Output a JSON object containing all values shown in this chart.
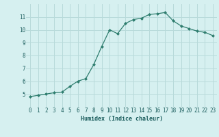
{
  "x": [
    0,
    1,
    2,
    3,
    4,
    5,
    6,
    7,
    8,
    9,
    10,
    11,
    12,
    13,
    14,
    15,
    16,
    17,
    18,
    19,
    20,
    21,
    22,
    23
  ],
  "y": [
    4.8,
    4.9,
    5.0,
    5.1,
    5.15,
    5.6,
    6.0,
    6.2,
    7.3,
    8.7,
    10.0,
    9.7,
    10.5,
    10.8,
    10.9,
    11.2,
    11.25,
    11.35,
    10.7,
    10.3,
    10.1,
    9.9,
    9.8,
    9.55
  ],
  "line_color": "#2e7d6e",
  "marker": "D",
  "marker_size": 2.0,
  "bg_color": "#d6f0f0",
  "grid_color": "#b8dada",
  "xlabel": "Humidex (Indice chaleur)",
  "xlabel_color": "#1a5c5c",
  "xlabel_fontsize": 6.0,
  "tick_label_color": "#1a5c5c",
  "tick_fontsize": 5.5,
  "ylim": [
    4,
    12
  ],
  "yticks": [
    5,
    6,
    7,
    8,
    9,
    10,
    11
  ],
  "xlim": [
    -0.5,
    23.5
  ],
  "xticks": [
    0,
    1,
    2,
    3,
    4,
    5,
    6,
    7,
    8,
    9,
    10,
    11,
    12,
    13,
    14,
    15,
    16,
    17,
    18,
    19,
    20,
    21,
    22,
    23
  ]
}
